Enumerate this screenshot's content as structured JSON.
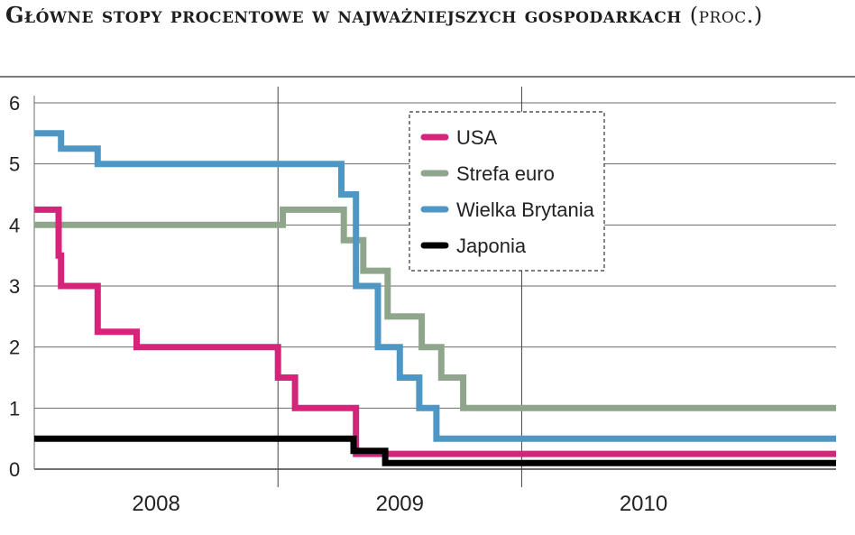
{
  "title_main": "Główne stopy procentowe w najważniejszych gospodarkach",
  "title_unit": "(proc.)",
  "source": "",
  "chart_data": {
    "type": "line",
    "step": true,
    "title": "Główne stopy procentowe w najważniejszych gospodarkach (proc.)",
    "xlabel": "",
    "ylabel": "",
    "ylim": [
      0,
      6
    ],
    "yticks": [
      0,
      1,
      2,
      3,
      4,
      5,
      6
    ],
    "xlim": [
      2007.5,
      2010.79
    ],
    "xtick_labels": [
      {
        "label": "2008",
        "x": 2008.0
      },
      {
        "label": "2009",
        "x": 2009.0
      },
      {
        "label": "2010",
        "x": 2010.0
      }
    ],
    "year_boundaries": [
      2008.5,
      2009.5
    ],
    "grid": "horizontal",
    "legend_position": "top-center",
    "series": [
      {
        "name": "USA",
        "color": "#d6247a",
        "x": [
          2007.5,
          2007.6,
          2007.6,
          2007.61,
          2007.61,
          2007.63,
          2007.63,
          2007.76,
          2007.76,
          2007.92,
          2007.92,
          2008.5,
          2008.5,
          2008.57,
          2008.57,
          2008.82,
          2008.82,
          2008.87,
          2008.87,
          2010.79
        ],
        "y": [
          4.25,
          4.25,
          3.5,
          3.5,
          3.0,
          3.0,
          3.0,
          3.0,
          2.25,
          2.25,
          2.0,
          2.0,
          1.5,
          1.5,
          1.0,
          1.0,
          0.25,
          0.25,
          0.25,
          0.25
        ]
      },
      {
        "name": "Strefa euro",
        "color": "#8fa68c",
        "x": [
          2007.5,
          2008.52,
          2008.52,
          2008.77,
          2008.77,
          2008.85,
          2008.85,
          2008.95,
          2008.95,
          2009.09,
          2009.09,
          2009.17,
          2009.17,
          2009.26,
          2009.26,
          2010.79
        ],
        "y": [
          4.0,
          4.0,
          4.25,
          4.25,
          3.75,
          3.75,
          3.25,
          3.25,
          2.5,
          2.5,
          2.0,
          2.0,
          1.5,
          1.5,
          1.0,
          1.0
        ]
      },
      {
        "name": "Wielka Brytania",
        "color": "#4e97c4",
        "x": [
          2007.5,
          2007.61,
          2007.61,
          2007.76,
          2007.76,
          2008.76,
          2008.76,
          2008.82,
          2008.82,
          2008.91,
          2008.91,
          2009.0,
          2009.0,
          2009.08,
          2009.08,
          2009.15,
          2009.15,
          2010.79
        ],
        "y": [
          5.5,
          5.5,
          5.25,
          5.25,
          5.0,
          5.0,
          4.5,
          4.5,
          3.0,
          3.0,
          2.0,
          2.0,
          1.5,
          1.5,
          1.0,
          1.0,
          0.5,
          0.5
        ]
      },
      {
        "name": "Japonia",
        "color": "#000000",
        "x": [
          2007.5,
          2008.81,
          2008.81,
          2008.94,
          2008.94,
          2010.79
        ],
        "y": [
          0.5,
          0.5,
          0.3,
          0.3,
          0.1,
          0.1
        ]
      }
    ]
  }
}
